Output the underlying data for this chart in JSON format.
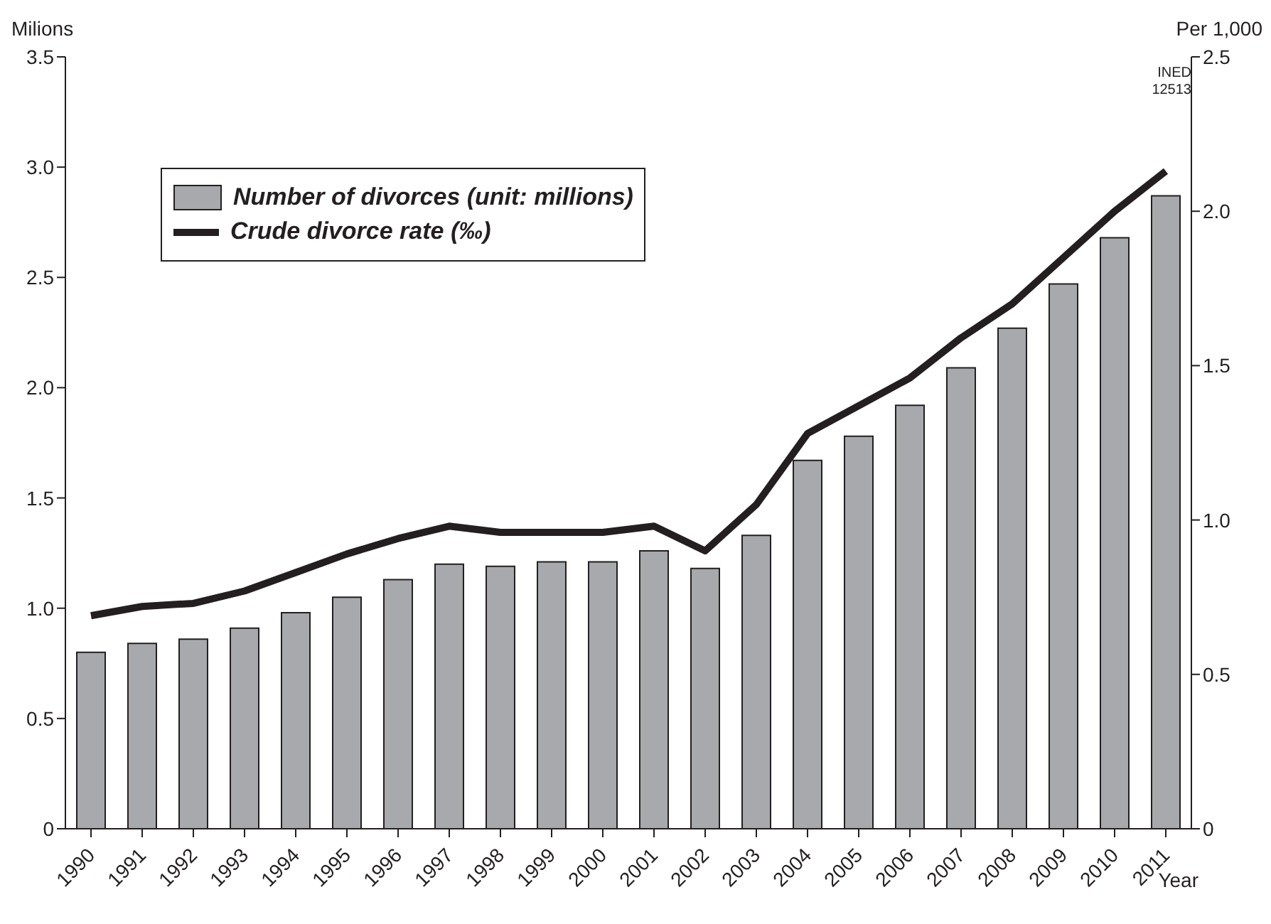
{
  "chart_data": {
    "type": "bar",
    "xlabel": "Year",
    "ylabel": "Milions",
    "y2label": "Per 1,000",
    "categories": [
      "1990",
      "1991",
      "1992",
      "1993",
      "1994",
      "1995",
      "1996",
      "1997",
      "1998",
      "1999",
      "2000",
      "2001",
      "2002",
      "2003",
      "2004",
      "2005",
      "2006",
      "2007",
      "2008",
      "2009",
      "2010",
      "2011"
    ],
    "series": [
      {
        "name": "Number of divorces (unit: millions)",
        "color": "#a7a9ac",
        "values": [
          0.8,
          0.84,
          0.86,
          0.91,
          0.98,
          1.05,
          1.13,
          1.2,
          1.19,
          1.21,
          1.21,
          1.26,
          1.18,
          1.33,
          1.67,
          1.78,
          1.92,
          2.09,
          2.27,
          2.47,
          2.68,
          2.87
        ]
      },
      {
        "name": "Crude divorce rate (‰)",
        "type": "line",
        "axis": "y2",
        "color": "#231f20",
        "values": [
          0.69,
          0.72,
          0.73,
          0.77,
          0.83,
          0.89,
          0.94,
          0.98,
          0.96,
          0.96,
          0.96,
          0.98,
          0.9,
          1.05,
          1.28,
          1.37,
          1.46,
          1.59,
          1.7,
          1.85,
          2.0,
          2.13
        ]
      }
    ],
    "ylim": [
      0,
      3.5
    ],
    "yticks": [
      {
        "value": 0,
        "label": "0"
      },
      0.5,
      {
        "value": 1,
        "label": "1.0"
      },
      1.5,
      {
        "value": 2,
        "label": "2.0"
      },
      2.5,
      {
        "value": 3,
        "label": "3.0"
      },
      3.5
    ],
    "y2lim": [
      0,
      2.5
    ],
    "y2ticks": [
      {
        "value": 0,
        "label": "0"
      },
      0.5,
      {
        "value": 1,
        "label": "1.0"
      },
      1.5,
      {
        "value": 2,
        "label": "2.0"
      },
      2.5
    ],
    "annotations": [
      "INED 12513"
    ],
    "legend": "top left",
    "grid": false,
    "marker": "none"
  }
}
